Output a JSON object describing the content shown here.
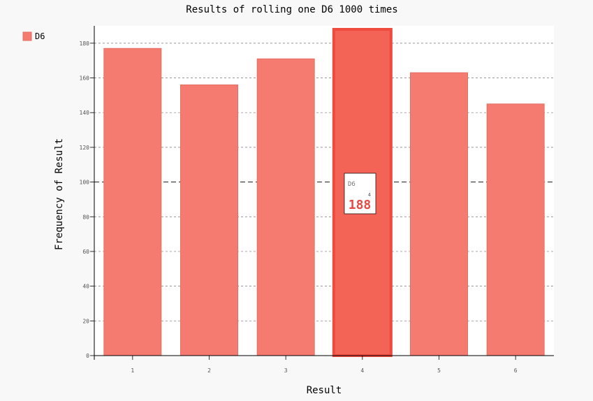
{
  "chart_data": {
    "type": "bar",
    "title": "Results of rolling one D6 1000 times",
    "xlabel": "Result",
    "ylabel": "Frequency of Result",
    "categories": [
      "1",
      "2",
      "3",
      "4",
      "5",
      "6"
    ],
    "series": [
      {
        "name": "D6",
        "values": [
          177,
          156,
          171,
          188,
          163,
          145
        ],
        "color": "#F57B70",
        "border_color": "#E46F65"
      }
    ],
    "ylim": [
      0,
      190
    ],
    "yticks": [
      0,
      20,
      40,
      60,
      80,
      100,
      120,
      140,
      160,
      180
    ],
    "ytick_labels": [
      "0",
      "20",
      "40",
      "60",
      "80",
      "100",
      "120",
      "140",
      "160",
      "180"
    ],
    "major_tick": 100,
    "grid": true,
    "legend": {
      "position": "top-left",
      "entries": [
        "D6"
      ]
    },
    "highlight": {
      "category": "4",
      "series": "D6",
      "value": "188",
      "tooltip_series": "D6",
      "tooltip_x": "4",
      "color": "#F36356",
      "border_color": "#EF4A3E",
      "value_color": "#E84A43"
    },
    "colors": {
      "background": "#F8F8F8",
      "plot_background": "#FFFFFF",
      "grid": "#777777",
      "axis": "#000000"
    }
  }
}
